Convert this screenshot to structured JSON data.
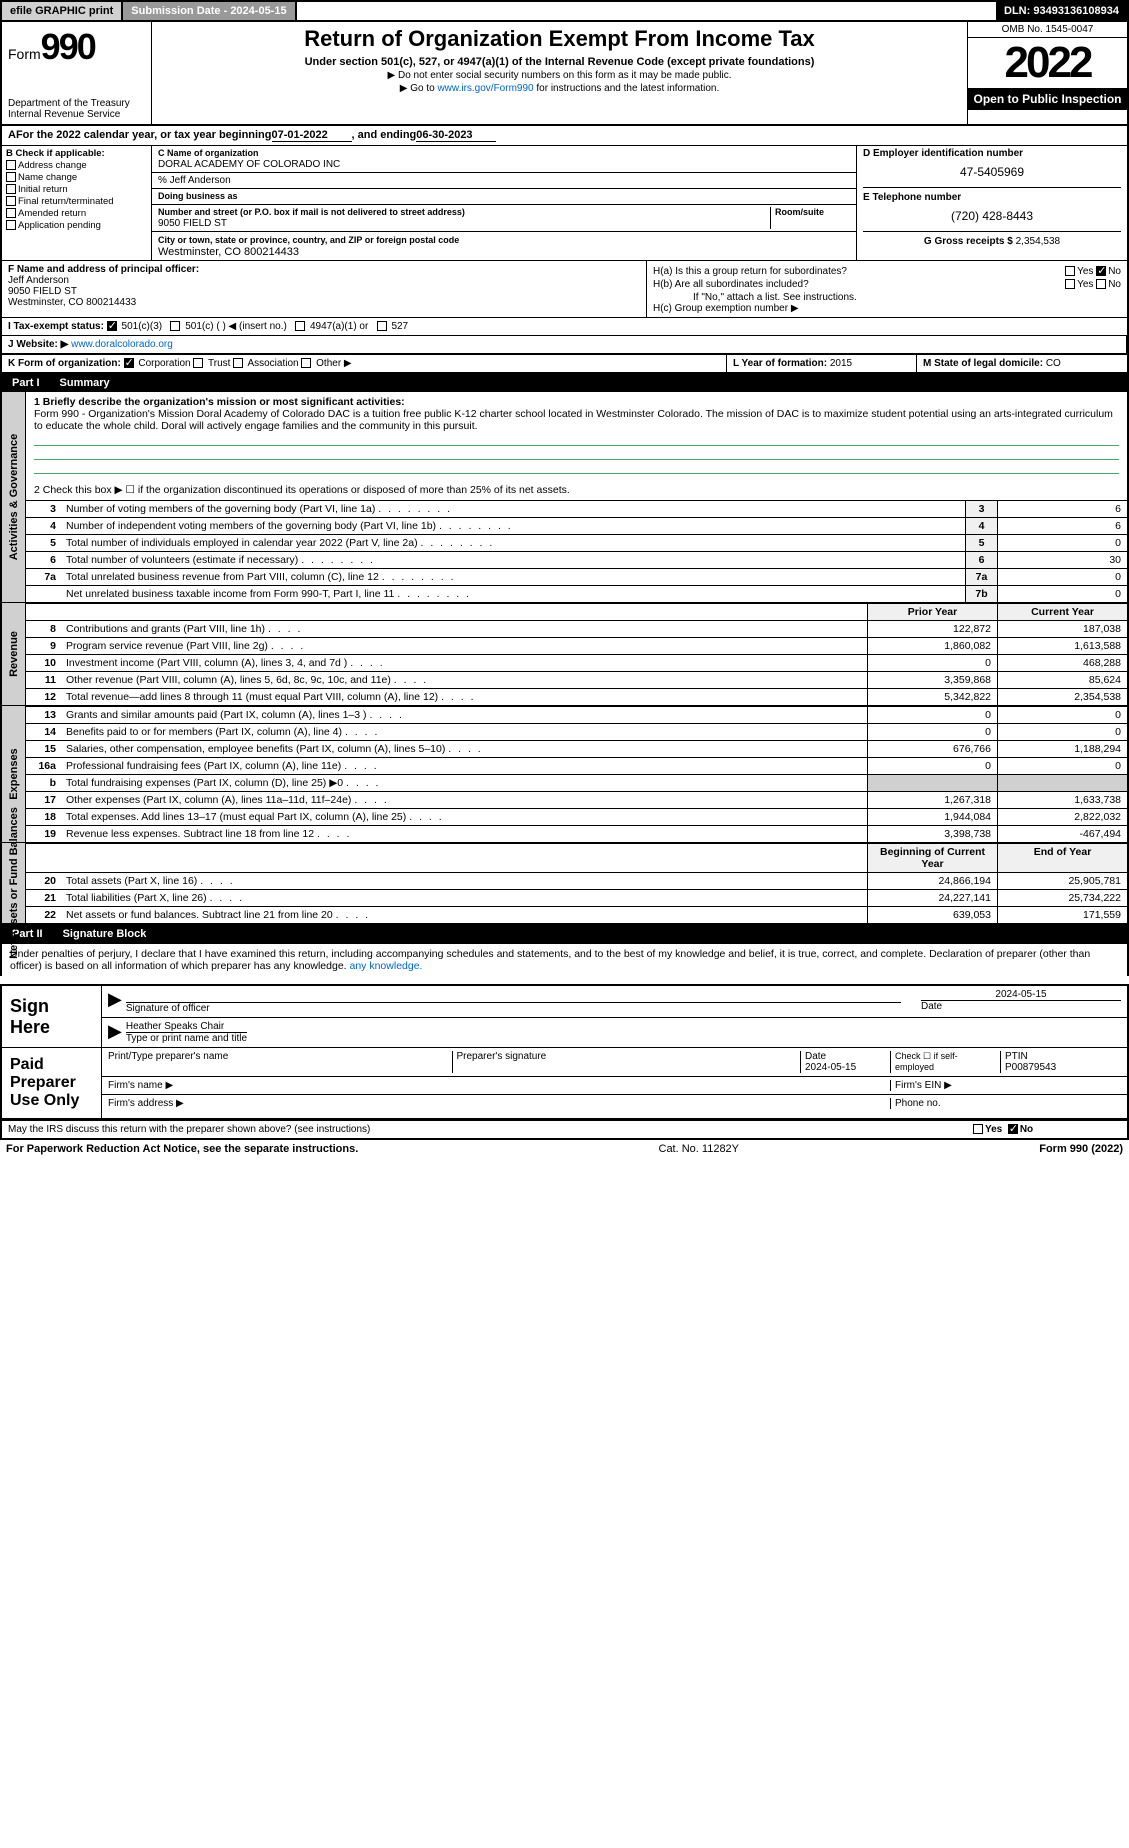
{
  "topbar": {
    "efile": "efile GRAPHIC print",
    "submit": "Submission Date - 2024-05-15",
    "dln": "DLN: 93493136108934"
  },
  "header": {
    "form_label": "Form",
    "form_num": "990",
    "dept": "Department of the Treasury",
    "irs": "Internal Revenue Service",
    "title": "Return of Organization Exempt From Income Tax",
    "subtitle": "Under section 501(c), 527, or 4947(a)(1) of the Internal Revenue Code (except private foundations)",
    "note1": "▶ Do not enter social security numbers on this form as it may be made public.",
    "note2_pre": "▶ Go to ",
    "note2_link": "www.irs.gov/Form990",
    "note2_post": " for instructions and the latest information.",
    "omb": "OMB No. 1545-0047",
    "year": "2022",
    "inspect": "Open to Public Inspection"
  },
  "periodA": {
    "text_pre": "For the 2022 calendar year, or tax year beginning ",
    "begin": "07-01-2022",
    "mid": " , and ending ",
    "end": "06-30-2023"
  },
  "sectB": {
    "title": "B Check if applicable:",
    "opts": [
      "Address change",
      "Name change",
      "Initial return",
      "Final return/terminated",
      "Amended return",
      "Application pending"
    ]
  },
  "sectC": {
    "name_lbl": "C Name of organization",
    "name": "DORAL ACADEMY OF COLORADO INC",
    "care_lbl": "% Jeff Anderson",
    "dba_lbl": "Doing business as",
    "street_lbl": "Number and street (or P.O. box if mail is not delivered to street address)",
    "room_lbl": "Room/suite",
    "street": "9050 FIELD ST",
    "city_lbl": "City or town, state or province, country, and ZIP or foreign postal code",
    "city": "Westminster, CO  800214433"
  },
  "sectD": {
    "ein_lbl": "D Employer identification number",
    "ein": "47-5405969",
    "tel_lbl": "E Telephone number",
    "tel": "(720) 428-8443",
    "gross_lbl": "G Gross receipts $",
    "gross": "2,354,538"
  },
  "sectF": {
    "lbl": "F Name and address of principal officer:",
    "name": "Jeff Anderson",
    "street": "9050 FIELD ST",
    "city": "Westminster, CO  800214433"
  },
  "sectH": {
    "ha": "H(a)  Is this a group return for subordinates?",
    "hb": "H(b)  Are all subordinates included?",
    "hb_note": "If \"No,\" attach a list. See instructions.",
    "hc": "H(c)  Group exemption number ▶",
    "yes": "Yes",
    "no": "No"
  },
  "sectI": {
    "lbl": "I   Tax-exempt status:",
    "o1": "501(c)(3)",
    "o2": "501(c) (   ) ◀ (insert no.)",
    "o3": "4947(a)(1) or",
    "o4": "527"
  },
  "sectJ": {
    "lbl": "J   Website: ▶",
    "val": "www.doralcolorado.org"
  },
  "sectK": {
    "lbl": "K Form of organization:",
    "o1": "Corporation",
    "o2": "Trust",
    "o3": "Association",
    "o4": "Other ▶"
  },
  "sectL": {
    "lbl": "L Year of formation:",
    "val": "2015"
  },
  "sectM": {
    "lbl": "M State of legal domicile:",
    "val": "CO"
  },
  "part1": {
    "num": "Part I",
    "title": "Summary"
  },
  "summary": {
    "q1_lbl": "1  Briefly describe the organization's mission or most significant activities:",
    "q1_text": "Form 990 - Organization's Mission Doral Academy of Colorado DAC is a tuition free public K-12 charter school located in Westminster Colorado. The mission of DAC is to maximize student potential using an arts-integrated curriculum to educate the whole child. Doral will actively engage families and the community in this pursuit.",
    "q2": "2   Check this box ▶ ☐  if the organization discontinued its operations or disposed of more than 25% of its net assets.",
    "lines_single": [
      {
        "n": "3",
        "d": "Number of voting members of the governing body (Part VI, line 1a)",
        "box": "3",
        "v": "6"
      },
      {
        "n": "4",
        "d": "Number of independent voting members of the governing body (Part VI, line 1b)",
        "box": "4",
        "v": "6"
      },
      {
        "n": "5",
        "d": "Total number of individuals employed in calendar year 2022 (Part V, line 2a)",
        "box": "5",
        "v": "0"
      },
      {
        "n": "6",
        "d": "Total number of volunteers (estimate if necessary)",
        "box": "6",
        "v": "30"
      },
      {
        "n": "7a",
        "d": "Total unrelated business revenue from Part VIII, column (C), line 12",
        "box": "7a",
        "v": "0"
      },
      {
        "n": "",
        "d": "Net unrelated business taxable income from Form 990-T, Part I, line 11",
        "box": "7b",
        "v": "0"
      }
    ],
    "hdr_prior": "Prior Year",
    "hdr_curr": "Current Year",
    "revenue": [
      {
        "n": "8",
        "d": "Contributions and grants (Part VIII, line 1h)",
        "p": "122,872",
        "c": "187,038"
      },
      {
        "n": "9",
        "d": "Program service revenue (Part VIII, line 2g)",
        "p": "1,860,082",
        "c": "1,613,588"
      },
      {
        "n": "10",
        "d": "Investment income (Part VIII, column (A), lines 3, 4, and 7d )",
        "p": "0",
        "c": "468,288"
      },
      {
        "n": "11",
        "d": "Other revenue (Part VIII, column (A), lines 5, 6d, 8c, 9c, 10c, and 11e)",
        "p": "3,359,868",
        "c": "85,624"
      },
      {
        "n": "12",
        "d": "Total revenue—add lines 8 through 11 (must equal Part VIII, column (A), line 12)",
        "p": "5,342,822",
        "c": "2,354,538"
      }
    ],
    "expenses": [
      {
        "n": "13",
        "d": "Grants and similar amounts paid (Part IX, column (A), lines 1–3 )",
        "p": "0",
        "c": "0"
      },
      {
        "n": "14",
        "d": "Benefits paid to or for members (Part IX, column (A), line 4)",
        "p": "0",
        "c": "0"
      },
      {
        "n": "15",
        "d": "Salaries, other compensation, employee benefits (Part IX, column (A), lines 5–10)",
        "p": "676,766",
        "c": "1,188,294"
      },
      {
        "n": "16a",
        "d": "Professional fundraising fees (Part IX, column (A), line 11e)",
        "p": "0",
        "c": "0"
      },
      {
        "n": "b",
        "d": "Total fundraising expenses (Part IX, column (D), line 25) ▶0",
        "p": "",
        "c": "",
        "shade": true
      },
      {
        "n": "17",
        "d": "Other expenses (Part IX, column (A), lines 11a–11d, 11f–24e)",
        "p": "1,267,318",
        "c": "1,633,738"
      },
      {
        "n": "18",
        "d": "Total expenses. Add lines 13–17 (must equal Part IX, column (A), line 25)",
        "p": "1,944,084",
        "c": "2,822,032"
      },
      {
        "n": "19",
        "d": "Revenue less expenses. Subtract line 18 from line 12",
        "p": "3,398,738",
        "c": "-467,494"
      }
    ],
    "hdr_beg": "Beginning of Current Year",
    "hdr_end": "End of Year",
    "net": [
      {
        "n": "20",
        "d": "Total assets (Part X, line 16)",
        "p": "24,866,194",
        "c": "25,905,781"
      },
      {
        "n": "21",
        "d": "Total liabilities (Part X, line 26)",
        "p": "24,227,141",
        "c": "25,734,222"
      },
      {
        "n": "22",
        "d": "Net assets or fund balances. Subtract line 21 from line 20",
        "p": "639,053",
        "c": "171,559"
      }
    ]
  },
  "sidelabels": {
    "ag": "Activities & Governance",
    "rev": "Revenue",
    "exp": "Expenses",
    "net": "Net Assets or Fund Balances"
  },
  "part2": {
    "num": "Part II",
    "title": "Signature Block"
  },
  "decl": "Under penalties of perjury, I declare that I have examined this return, including accompanying schedules and statements, and to the best of my knowledge and belief, it is true, correct, and complete. Declaration of preparer (other than officer) is based on all information of which preparer has any knowledge.",
  "sign": {
    "here": "Sign Here",
    "sig_officer": "Signature of officer",
    "date": "Date",
    "date_val": "2024-05-15",
    "name": "Heather Speaks Chair",
    "name_lbl": "Type or print name and title"
  },
  "paid": {
    "lbl": "Paid Preparer Use Only",
    "prep_name": "Print/Type preparer's name",
    "prep_sig": "Preparer's signature",
    "prep_date": "Date",
    "prep_date_val": "2024-05-15",
    "self": "Check ☐ if self-employed",
    "ptin_lbl": "PTIN",
    "ptin": "P00879543",
    "firm_name": "Firm's name   ▶",
    "firm_ein": "Firm's EIN ▶",
    "firm_addr": "Firm's address ▶",
    "phone": "Phone no."
  },
  "discuss": {
    "q": "May the IRS discuss this return with the preparer shown above? (see instructions)",
    "yes": "Yes",
    "no": "No"
  },
  "footer": {
    "l": "For Paperwork Reduction Act Notice, see the separate instructions.",
    "m": "Cat. No. 11282Y",
    "r": "Form 990 (2022)"
  }
}
